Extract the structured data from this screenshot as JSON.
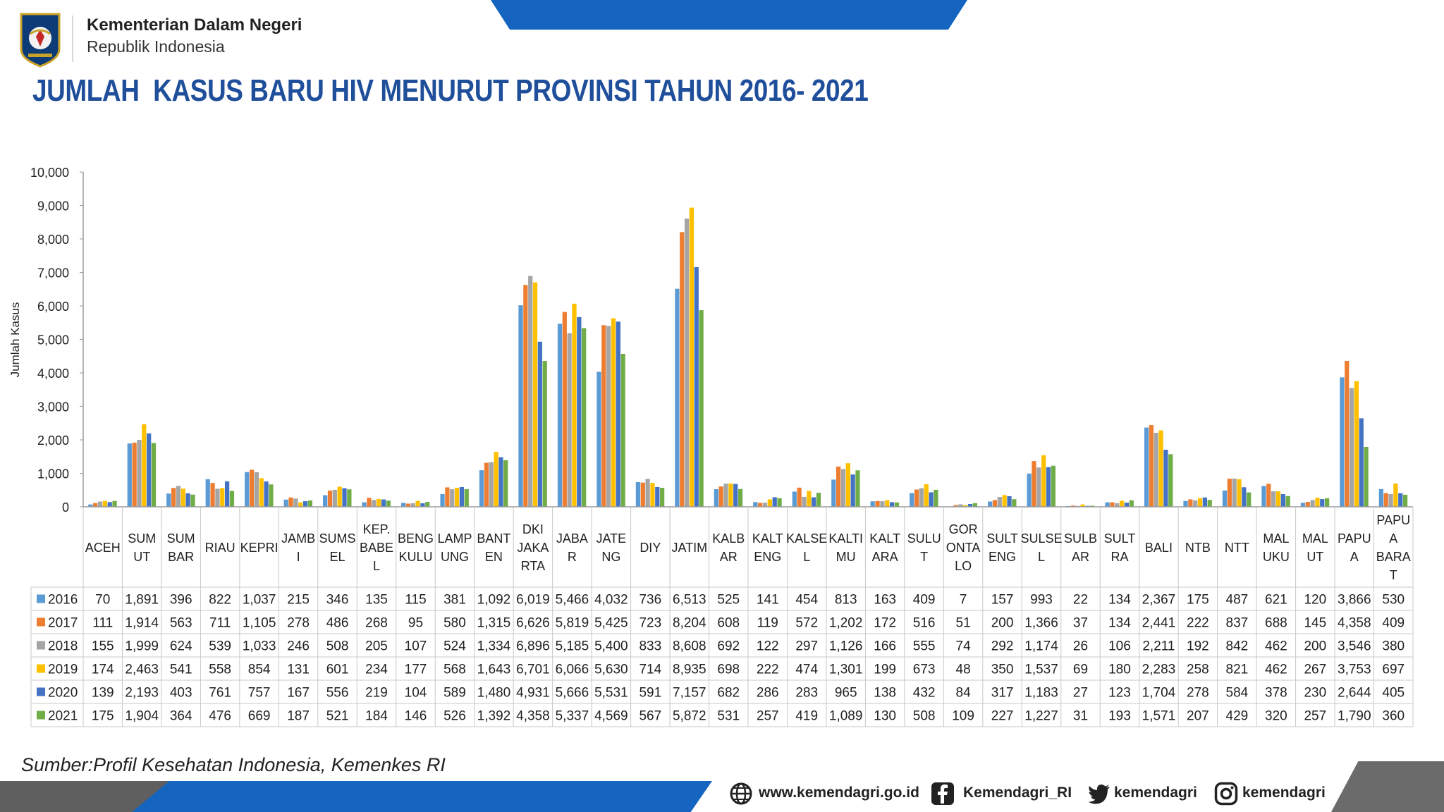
{
  "header": {
    "org_name": "Kementerian Dalam Negeri",
    "org_sub": "Republik Indonesia",
    "title": "JUMLAH  KASUS BARU HIV MENURUT PROVINSI TAHUN 2016- 2021"
  },
  "chart_data": {
    "type": "bar",
    "ylabel": "Jumlah Kasus",
    "ylim": [
      0,
      10000
    ],
    "yticks": [
      "0",
      "1,000",
      "2,000",
      "3,000",
      "4,000",
      "5,000",
      "6,000",
      "7,000",
      "8,000",
      "9,000",
      "10,000"
    ],
    "grid": false,
    "legend": "data-table",
    "categories": [
      "ACEH",
      "SUMUT",
      "SUMBAR",
      "RIAU",
      "KEPRI",
      "JAMBI",
      "SUMSEL",
      "KEP. BABEL",
      "BENGKULU",
      "LAMPUNG",
      "BANTEN",
      "DKI JAKARTA",
      "JABAR",
      "JATENG",
      "DIY",
      "JATIM",
      "KALBAR",
      "KALTENG",
      "KALSEL",
      "KALTIMU",
      "KALTARA",
      "SULUT",
      "GORONTALO",
      "SULTENG",
      "SULSEL",
      "SULBAR",
      "SULTRA",
      "BALI",
      "NTB",
      "NTT",
      "MALUKU",
      "MALUT",
      "PAPUA",
      "PAPUA BARAT"
    ],
    "category_label_lines": [
      [
        "ACEH"
      ],
      [
        "SUM",
        "UT"
      ],
      [
        "SUM",
        "BAR"
      ],
      [
        "RIAU"
      ],
      [
        "KEPRI"
      ],
      [
        "JAMB",
        "I"
      ],
      [
        "SUMS",
        "EL"
      ],
      [
        "KEP.",
        "BABE",
        "L"
      ],
      [
        "BENG",
        "KULU"
      ],
      [
        "LAMP",
        "UNG"
      ],
      [
        "BANT",
        "EN"
      ],
      [
        "DKI",
        "JAKA",
        "RTA"
      ],
      [
        "JABA",
        "R"
      ],
      [
        "JATE",
        "NG"
      ],
      [
        "DIY"
      ],
      [
        "JATIM"
      ],
      [
        "KALB",
        "AR"
      ],
      [
        "KALT",
        "ENG"
      ],
      [
        "KALSE",
        "L"
      ],
      [
        "KALTI",
        "MU"
      ],
      [
        "KALT",
        "ARA"
      ],
      [
        "SULU",
        "T"
      ],
      [
        "GOR",
        "ONTA",
        "LO"
      ],
      [
        "SULT",
        "ENG"
      ],
      [
        "SULSE",
        "L"
      ],
      [
        "SULB",
        "AR"
      ],
      [
        "SULT",
        "RA"
      ],
      [
        "BALI"
      ],
      [
        "NTB"
      ],
      [
        "NTT"
      ],
      [
        "MAL",
        "UKU"
      ],
      [
        "MAL",
        "UT"
      ],
      [
        "PAPU",
        "A"
      ],
      [
        "PAPU",
        "A",
        "BARA",
        "T"
      ]
    ],
    "series": [
      {
        "name": "2016",
        "color": "#5b9bd5",
        "values": [
          70,
          1891,
          396,
          822,
          1037,
          215,
          346,
          135,
          115,
          381,
          1092,
          6019,
          5466,
          4032,
          736,
          6513,
          525,
          141,
          454,
          813,
          163,
          409,
          7,
          157,
          993,
          22,
          134,
          2367,
          175,
          487,
          621,
          120,
          3866,
          530
        ]
      },
      {
        "name": "2017",
        "color": "#ed7d31",
        "values": [
          111,
          1914,
          563,
          711,
          1105,
          278,
          486,
          268,
          95,
          580,
          1315,
          6626,
          5819,
          5425,
          723,
          8204,
          608,
          119,
          572,
          1202,
          172,
          516,
          51,
          200,
          1366,
          37,
          134,
          2441,
          222,
          837,
          688,
          145,
          4358,
          409
        ]
      },
      {
        "name": "2018",
        "color": "#a5a5a5",
        "values": [
          155,
          1999,
          624,
          539,
          1033,
          246,
          508,
          205,
          107,
          524,
          1334,
          6896,
          5185,
          5400,
          833,
          8608,
          692,
          122,
          297,
          1126,
          166,
          555,
          74,
          292,
          1174,
          26,
          106,
          2211,
          192,
          842,
          462,
          200,
          3546,
          380
        ]
      },
      {
        "name": "2019",
        "color": "#ffc000",
        "values": [
          174,
          2463,
          541,
          558,
          854,
          131,
          601,
          234,
          177,
          568,
          1643,
          6701,
          6066,
          5630,
          714,
          8935,
          698,
          222,
          474,
          1301,
          199,
          673,
          48,
          350,
          1537,
          69,
          180,
          2283,
          258,
          821,
          462,
          267,
          3753,
          697
        ]
      },
      {
        "name": "2020",
        "color": "#4472c4",
        "values": [
          139,
          2193,
          403,
          761,
          757,
          167,
          556,
          219,
          104,
          589,
          1480,
          4931,
          5666,
          5531,
          591,
          7157,
          682,
          286,
          283,
          965,
          138,
          432,
          84,
          317,
          1183,
          27,
          123,
          1704,
          278,
          584,
          378,
          230,
          2644,
          405
        ]
      },
      {
        "name": "2021",
        "color": "#70ad47",
        "values": [
          175,
          1904,
          364,
          476,
          669,
          187,
          521,
          184,
          146,
          526,
          1392,
          4358,
          5337,
          4569,
          567,
          5872,
          531,
          257,
          419,
          1089,
          130,
          508,
          109,
          227,
          1227,
          31,
          193,
          1571,
          207,
          429,
          320,
          257,
          1790,
          360
        ]
      }
    ]
  },
  "footer": {
    "source": "Sumber:Profil Kesehatan Indonesia, Kemenkes RI",
    "website": "www.kemendagri.go.id",
    "facebook": "Kemendagri_RI",
    "twitter": "kemendagri",
    "instagram": "kemendagri",
    "icons": [
      "globe-icon",
      "facebook-icon",
      "twitter-icon",
      "instagram-icon"
    ],
    "accent_color": "#1565c0"
  }
}
